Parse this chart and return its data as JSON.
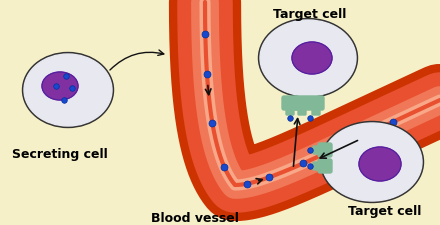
{
  "background_color": "#f5f0c8",
  "vessel_outer_color": "#cc3300",
  "vessel_mid_color": "#e85030",
  "vessel_inner_color": "#f07858",
  "cell_body_color": "#e8e8f0",
  "nucleus_color": "#8030a0",
  "dot_color": "#1848cc",
  "receptor_color": "#80b898",
  "text_color": "#000000",
  "border_color": "#333333",
  "labels": {
    "secreting_cell": "Secreting cell",
    "blood_vessel": "Blood vessel",
    "target_cell_top": "Target cell",
    "target_cell_bottom": "Target cell"
  },
  "label_fontsize": 9,
  "figsize": [
    4.4,
    2.25
  ],
  "dpi": 100
}
